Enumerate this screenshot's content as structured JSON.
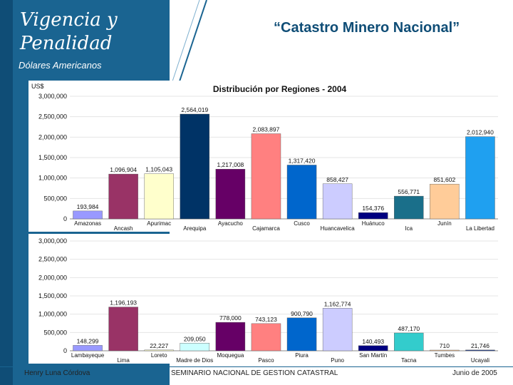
{
  "slide": {
    "title": "Vigencia y Penalidad",
    "subtitle": "“Catastro Minero Nacional”",
    "currency": "Dólares Americanos"
  },
  "footer": {
    "left": "Henry Luna Córdova",
    "center": "SEMINARIO NACIONAL DE GESTION CATASTRAL",
    "right": "Junio de 2005"
  },
  "chart_data": [
    {
      "type": "bar",
      "title": "Distribución por Regiones - 2004",
      "ylabel": "US$",
      "ylim": [
        0,
        3000000
      ],
      "yticks": [
        0,
        500000,
        1000000,
        1500000,
        2000000,
        2500000,
        3000000
      ],
      "ytick_labels": [
        "0",
        "500,000",
        "1,000,000",
        "1,500,000",
        "2,000,000",
        "2,500,000",
        "3,000,000"
      ],
      "categories": [
        "Amazonas",
        "Ancash",
        "Apurimac",
        "Arequipa",
        "Ayacucho",
        "Cajamarca",
        "Cusco",
        "Huancavelica",
        "Huánuco",
        "Ica",
        "Junín",
        "La Libertad"
      ],
      "values": [
        193984,
        1096904,
        1105043,
        2564019,
        1217008,
        2083897,
        1317420,
        858427,
        154376,
        556771,
        851602,
        2012940
      ],
      "value_labels": [
        "193,984",
        "1,096,904",
        "1,105,043",
        "2,564,019",
        "1,217,008",
        "2,083,897",
        "1,317,420",
        "858,427",
        "154,376",
        "556,771",
        "851,602",
        "2,012,940"
      ],
      "colors": [
        "#9999ff",
        "#993366",
        "#ffffcc",
        "#003366",
        "#660066",
        "#ff8080",
        "#0066cc",
        "#ccccff",
        "#000080",
        "#1a6f8a",
        "#ffcc99",
        "#1fa0f0"
      ]
    },
    {
      "type": "bar",
      "title": "",
      "ylabel": "",
      "ylim": [
        0,
        3000000
      ],
      "yticks": [
        0,
        500000,
        1000000,
        1500000,
        2000000,
        2500000,
        3000000
      ],
      "ytick_labels": [
        "0",
        "500,000",
        "1,000,000",
        "1,500,000",
        "2,000,000",
        "2,500,000",
        "3,000,000"
      ],
      "categories": [
        "Lambayeque",
        "Lima",
        "Loreto",
        "Madre de Dios",
        "Moquegua",
        "Pasco",
        "Piura",
        "Puno",
        "San Martín",
        "Tacna",
        "Tumbes",
        "Ucayali"
      ],
      "values": [
        148299,
        1196193,
        22227,
        209050,
        778000,
        743123,
        900790,
        1162774,
        140493,
        487170,
        710,
        21746
      ],
      "value_labels": [
        "148,299",
        "1,196,193",
        "22,227",
        "209,050",
        "778,000",
        "743,123",
        "900,790",
        "1,162,774",
        "140,493",
        "487,170",
        "710",
        "21,746"
      ],
      "colors": [
        "#9999ff",
        "#993366",
        "#ffffcc",
        "#ccffff",
        "#660066",
        "#ff8080",
        "#0066cc",
        "#ccccff",
        "#000080",
        "#33cccc",
        "#ffcc99",
        "#1f3f8f"
      ]
    }
  ]
}
